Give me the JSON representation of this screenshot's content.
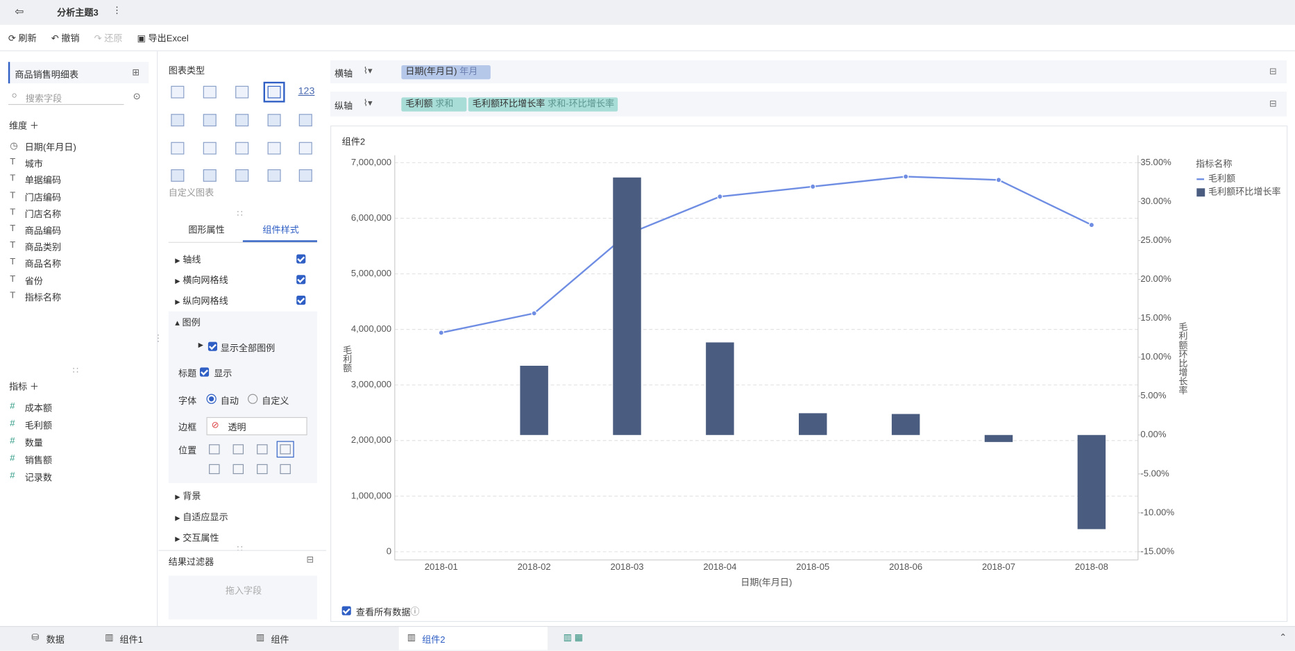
{
  "header": {
    "title": "分析主题3"
  },
  "toolbar": {
    "refresh": "刷新",
    "undo": "撤销",
    "redo": "还原",
    "export": "导出Excel"
  },
  "fields": {
    "table": "商品销售明细表",
    "search": "搜索字段",
    "dim_title": "维度",
    "dims": [
      "日期(年月日)",
      "城市",
      "单据编码",
      "门店编码",
      "门店名称",
      "商品编码",
      "商品类别",
      "商品名称",
      "省份",
      "指标名称"
    ],
    "measure_title": "指标",
    "measures": [
      "成本额",
      "毛利额",
      "数量",
      "销售额",
      "记录数"
    ]
  },
  "config": {
    "chart_type_title": "图表类型",
    "kpi_icon": "123",
    "custom_chart": "自定义图表",
    "tabs": [
      "图形属性",
      "组件样式"
    ],
    "sections": [
      "轴线",
      "横向网格线",
      "纵向网格线"
    ],
    "legend": "图例",
    "show_all_legend": "显示全部图例",
    "title_label": "标题",
    "title_show": "显示",
    "font_label": "字体",
    "font_auto": "自动",
    "font_custom": "自定义",
    "border_label": "边框",
    "border_value": "透明",
    "position_label": "位置",
    "more_sections": [
      "背景",
      "自适应显示",
      "交互属性"
    ],
    "filter_title": "结果过滤器",
    "filter_placeholder": "拖入字段"
  },
  "shelf": {
    "x_label": "横轴",
    "x_field": "日期(年月日)",
    "x_sub": "年月",
    "y_label": "纵轴",
    "y_fields": [
      {
        "name": "毛利额",
        "sub": "求和"
      },
      {
        "name": "毛利额环比增长率",
        "sub": "求和-环比增长率"
      }
    ]
  },
  "widget": {
    "title": "组件2",
    "view_all": "查看所有数据"
  },
  "bottom": {
    "tabs": [
      "数据",
      "组件1",
      "组件",
      "组件2"
    ]
  },
  "chart_data": {
    "type": "combo",
    "x_label": "日期(年月日)",
    "y_label": "毛利额",
    "y2_label": "毛利额环比增长率",
    "legend_title": "指标名称",
    "legend": "right",
    "grid": true,
    "categories": [
      "2018-01",
      "2018-02",
      "2018-03",
      "2018-04",
      "2018-05",
      "2018-06",
      "2018-07",
      "2018-08"
    ],
    "series": [
      {
        "name": "毛利额",
        "type": "line",
        "color": "#6f8ee3",
        "values": [
          3940000,
          4290000,
          5710000,
          6390000,
          6570000,
          6750000,
          6690000,
          5880000
        ]
      },
      {
        "name": "毛利额环比增长率",
        "type": "bar",
        "axis": "y2",
        "color": "#4a5d80",
        "values": [
          null,
          8.9,
          33.1,
          11.9,
          2.8,
          2.7,
          -0.9,
          -12.1
        ]
      }
    ],
    "ylim": [
      0,
      7000000
    ],
    "yticks": [
      0,
      {
        "value": 1000000,
        "label": "1,000,000"
      },
      {
        "value": 2000000,
        "label": "2,000,000"
      },
      {
        "value": 3000000,
        "label": "3,000,000"
      },
      {
        "value": 4000000,
        "label": "4,000,000"
      },
      {
        "value": 5000000,
        "label": "5,000,000"
      },
      {
        "value": 6000000,
        "label": "6,000,000"
      },
      {
        "value": 7000000,
        "label": "7,000,000"
      }
    ],
    "y2lim": [
      -15,
      35
    ],
    "y2ticks": [
      {
        "value": -15,
        "label": "-15.00%"
      },
      {
        "value": -10,
        "label": "-10.00%"
      },
      {
        "value": -5,
        "label": "-5.00%"
      },
      {
        "value": 0,
        "label": "0.00%"
      },
      {
        "value": 5,
        "label": "5.00%"
      },
      {
        "value": 10,
        "label": "10.00%"
      },
      {
        "value": 15,
        "label": "15.00%"
      },
      {
        "value": 20,
        "label": "20.00%"
      },
      {
        "value": 25,
        "label": "25.00%"
      },
      {
        "value": 30,
        "label": "30.00%"
      },
      {
        "value": 35,
        "label": "35.00%"
      }
    ]
  }
}
